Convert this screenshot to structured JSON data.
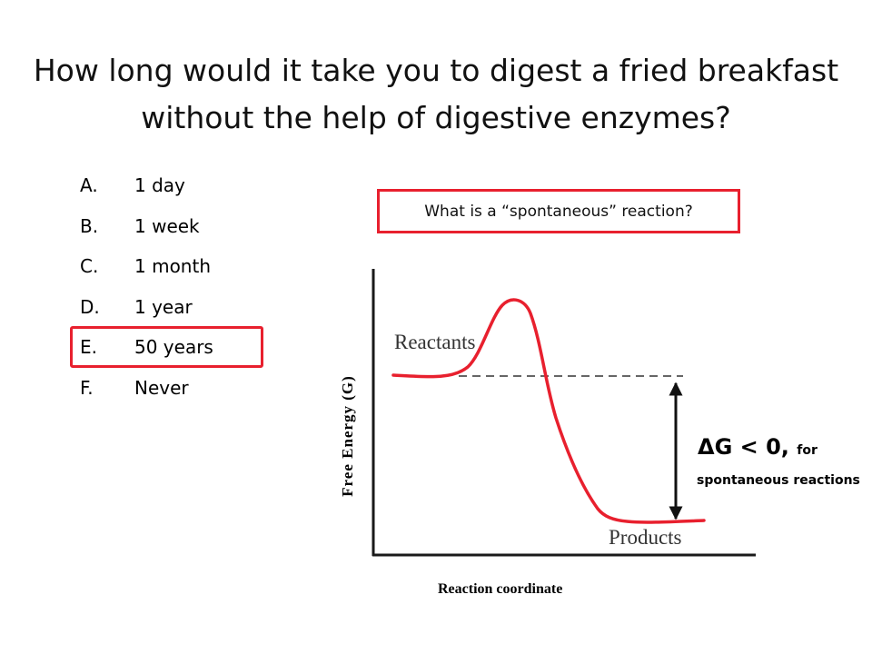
{
  "slide": {
    "title": "How long would it take you to digest a fried breakfast without the help of digestive enzymes?"
  },
  "options": [
    {
      "letter": "A.",
      "text": "1 day",
      "selected": false
    },
    {
      "letter": "B.",
      "text": "1 week",
      "selected": false
    },
    {
      "letter": "C.",
      "text": "1 month",
      "selected": false
    },
    {
      "letter": "D.",
      "text": "1 year",
      "selected": false
    },
    {
      "letter": "E.",
      "text": "50 years",
      "selected": true
    },
    {
      "letter": "F.",
      "text": "Never",
      "selected": false
    }
  ],
  "question_box": {
    "text": "What is a “spontaneous” reaction?"
  },
  "diagram": {
    "y_axis_label": "Free Energy (G)",
    "x_axis_label": "Reaction coordinate",
    "reactants_label": "Reactants",
    "products_label": "Products",
    "delta_g": "ΔG < 0,",
    "delta_g_for": "for",
    "delta_g_note": "spontaneous reactions"
  },
  "colors": {
    "accent_red": "#e8202e",
    "axis": "#1a1a1a",
    "dashed": "#333333"
  }
}
